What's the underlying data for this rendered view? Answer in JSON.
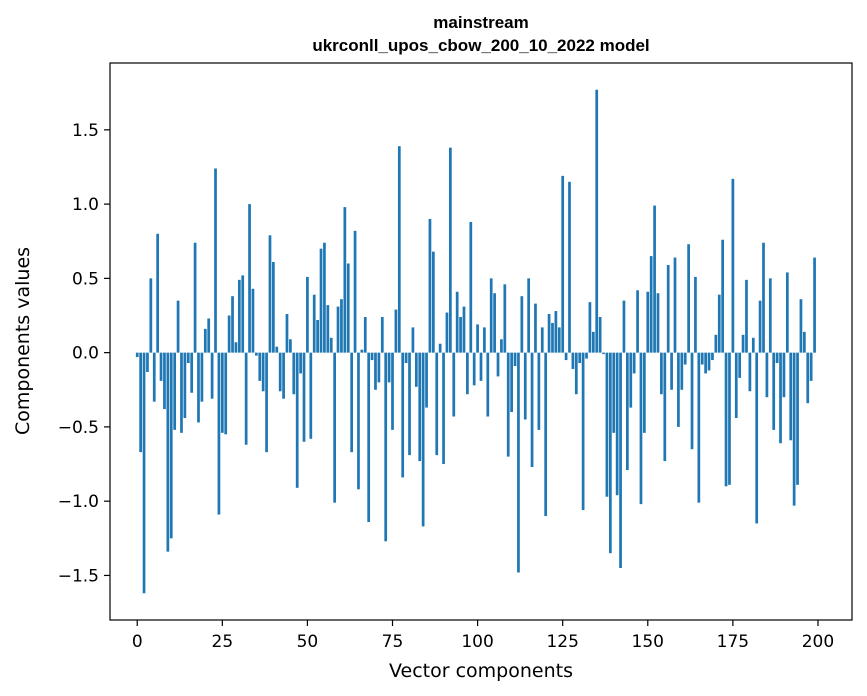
{
  "chart_data": {
    "type": "bar",
    "title": [
      "mainstream",
      "ukrconll_upos_cbow_200_10_2022 model"
    ],
    "xlabel": "Vector components",
    "ylabel": "Components values",
    "xlim": [
      -8,
      210
    ],
    "ylim": [
      -1.8,
      1.95
    ],
    "grid": false,
    "bar_color": "#1f77b4",
    "xticks": [
      {
        "value": 0,
        "label": "0"
      },
      {
        "value": 25,
        "label": "25"
      },
      {
        "value": 50,
        "label": "50"
      },
      {
        "value": 75,
        "label": "75"
      },
      {
        "value": 100,
        "label": "100"
      },
      {
        "value": 125,
        "label": "125"
      },
      {
        "value": 150,
        "label": "150"
      },
      {
        "value": 175,
        "label": "175"
      },
      {
        "value": 200,
        "label": "200"
      }
    ],
    "yticks": [
      {
        "value": -1.5,
        "label": "−1.5"
      },
      {
        "value": -1.0,
        "label": "−1.0"
      },
      {
        "value": -0.5,
        "label": "−0.5"
      },
      {
        "value": 0.0,
        "label": "0.0"
      },
      {
        "value": 0.5,
        "label": "0.5"
      },
      {
        "value": 1.0,
        "label": "1.0"
      },
      {
        "value": 1.5,
        "label": "1.5"
      }
    ],
    "x": [
      0,
      1,
      2,
      3,
      4,
      5,
      6,
      7,
      8,
      9,
      10,
      11,
      12,
      13,
      14,
      15,
      16,
      17,
      18,
      19,
      20,
      21,
      22,
      23,
      24,
      25,
      26,
      27,
      28,
      29,
      30,
      31,
      32,
      33,
      34,
      35,
      36,
      37,
      38,
      39,
      40,
      41,
      42,
      43,
      44,
      45,
      46,
      47,
      48,
      49,
      50,
      51,
      52,
      53,
      54,
      55,
      56,
      57,
      58,
      59,
      60,
      61,
      62,
      63,
      64,
      65,
      66,
      67,
      68,
      69,
      70,
      71,
      72,
      73,
      74,
      75,
      76,
      77,
      78,
      79,
      80,
      81,
      82,
      83,
      84,
      85,
      86,
      87,
      88,
      89,
      90,
      91,
      92,
      93,
      94,
      95,
      96,
      97,
      98,
      99,
      100,
      101,
      102,
      103,
      104,
      105,
      106,
      107,
      108,
      109,
      110,
      111,
      112,
      113,
      114,
      115,
      116,
      117,
      118,
      119,
      120,
      121,
      122,
      123,
      124,
      125,
      126,
      127,
      128,
      129,
      130,
      131,
      132,
      133,
      134,
      135,
      136,
      137,
      138,
      139,
      140,
      141,
      142,
      143,
      144,
      145,
      146,
      147,
      148,
      149,
      150,
      151,
      152,
      153,
      154,
      155,
      156,
      157,
      158,
      159,
      160,
      161,
      162,
      163,
      164,
      165,
      166,
      167,
      168,
      169,
      170,
      171,
      172,
      173,
      174,
      175,
      176,
      177,
      178,
      179,
      180,
      181,
      182,
      183,
      184,
      185,
      186,
      187,
      188,
      189,
      190,
      191,
      192,
      193,
      194,
      195,
      196,
      197,
      198,
      199
    ],
    "values": [
      -0.03,
      -0.67,
      -1.62,
      -0.13,
      0.5,
      -0.33,
      0.8,
      -0.19,
      -0.38,
      -1.34,
      -1.25,
      -0.52,
      0.35,
      -0.54,
      -0.44,
      -0.07,
      -0.27,
      0.74,
      -0.47,
      -0.33,
      0.16,
      0.23,
      -0.31,
      1.24,
      -1.09,
      -0.54,
      -0.55,
      0.25,
      0.38,
      0.07,
      0.49,
      0.52,
      -0.62,
      1.0,
      0.43,
      -0.02,
      -0.19,
      -0.26,
      -0.67,
      0.79,
      0.61,
      0.04,
      -0.26,
      -0.31,
      0.26,
      0.09,
      -0.28,
      -0.91,
      -0.14,
      -0.6,
      0.51,
      -0.58,
      0.39,
      0.22,
      0.7,
      0.74,
      0.32,
      0.1,
      -1.01,
      0.31,
      0.36,
      0.98,
      0.6,
      -0.67,
      0.82,
      -0.92,
      0.02,
      0.24,
      -1.14,
      -0.05,
      -0.25,
      -0.2,
      0.24,
      -1.27,
      -0.2,
      -0.52,
      0.29,
      1.39,
      -0.84,
      -0.07,
      -0.69,
      0.17,
      -0.23,
      -0.73,
      -1.17,
      -0.37,
      0.9,
      0.68,
      -0.69,
      0.06,
      -0.75,
      0.27,
      1.38,
      -0.43,
      0.41,
      0.24,
      0.31,
      -0.28,
      0.88,
      -0.22,
      0.19,
      -0.19,
      0.17,
      -0.43,
      0.5,
      0.4,
      -0.16,
      0.09,
      0.46,
      -0.7,
      -0.4,
      -0.09,
      -1.48,
      0.38,
      -0.45,
      0.5,
      -0.77,
      0.33,
      -0.52,
      0.17,
      -1.1,
      0.26,
      0.2,
      0.28,
      0.17,
      1.19,
      -0.05,
      1.15,
      -0.11,
      -0.28,
      -0.07,
      -1.06,
      -0.04,
      0.34,
      0.14,
      1.77,
      0.24,
      -0.01,
      -0.97,
      -1.35,
      -0.54,
      -0.96,
      -1.45,
      0.35,
      -0.79,
      -0.37,
      -0.14,
      0.42,
      -1.02,
      -0.54,
      0.41,
      0.65,
      0.99,
      0.4,
      -0.28,
      -0.73,
      0.59,
      -0.25,
      0.64,
      -0.5,
      -0.25,
      -0.08,
      0.73,
      -0.65,
      0.51,
      -1.01,
      -0.08,
      -0.14,
      -0.12,
      -0.05,
      0.12,
      0.39,
      0.76,
      -0.9,
      -0.89,
      1.17,
      -0.44,
      -0.17,
      0.12,
      0.49,
      -0.26,
      0.1,
      -1.15,
      0.35,
      0.74,
      -0.3,
      0.5,
      -0.52,
      -0.07,
      -0.61,
      -0.3,
      0.54,
      -0.59,
      -1.03,
      -0.89,
      0.36,
      0.14,
      -0.34,
      -0.19,
      0.64
    ]
  }
}
